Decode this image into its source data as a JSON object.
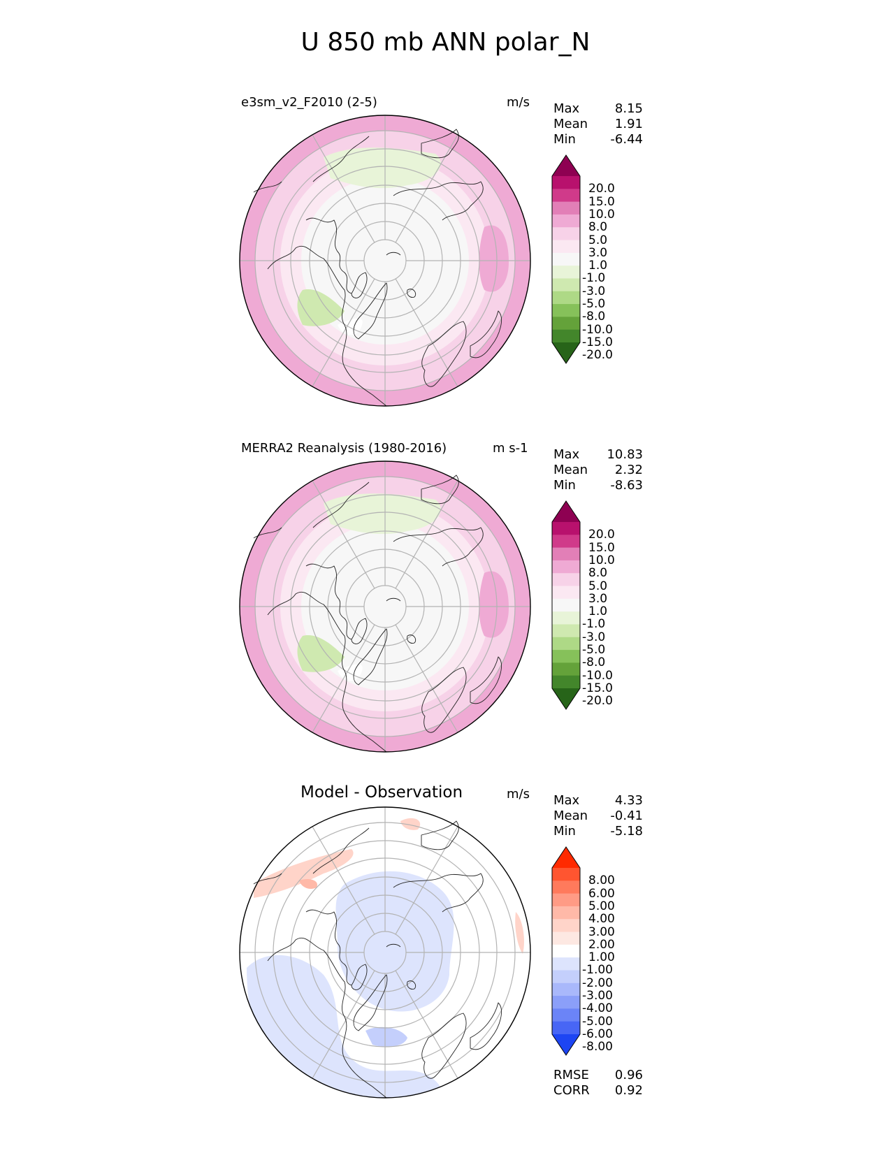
{
  "title": "U 850 mb ANN polar_N",
  "panels": [
    {
      "id": "test",
      "title": "e3sm_v2_F2010 (2-5)",
      "units": "m/s",
      "stats": [
        {
          "label": "Max",
          "value": "8.15"
        },
        {
          "label": "Mean",
          "value": "1.91"
        },
        {
          "label": "Min",
          "value": "-6.44"
        }
      ],
      "colorbar": {
        "labels": [
          "20.0",
          "15.0",
          "10.0",
          "8.0",
          "5.0",
          "3.0",
          "1.0",
          "-1.0",
          "-3.0",
          "-5.0",
          "-8.0",
          "-10.0",
          "-15.0",
          "-20.0"
        ],
        "colors": [
          "#8e0152",
          "#b8116d",
          "#d03a8a",
          "#e27fb7",
          "#efaad4",
          "#f7d2e8",
          "#fbe8f2",
          "#f7f7f7",
          "#e8f4d8",
          "#cfe9b0",
          "#aed986",
          "#86c15a",
          "#64a23a",
          "#43862b",
          "#276419"
        ]
      }
    },
    {
      "id": "reference",
      "title": "MERRA2 Reanalysis (1980-2016)",
      "units": "m s-1",
      "stats": [
        {
          "label": "Max",
          "value": "10.83"
        },
        {
          "label": "Mean",
          "value": "2.32"
        },
        {
          "label": "Min",
          "value": "-8.63"
        }
      ],
      "colorbar": {
        "labels": [
          "20.0",
          "15.0",
          "10.0",
          "8.0",
          "5.0",
          "3.0",
          "1.0",
          "-1.0",
          "-3.0",
          "-5.0",
          "-8.0",
          "-10.0",
          "-15.0",
          "-20.0"
        ],
        "colors": [
          "#8e0152",
          "#b8116d",
          "#d03a8a",
          "#e27fb7",
          "#efaad4",
          "#f7d2e8",
          "#fbe8f2",
          "#f7f7f7",
          "#e8f4d8",
          "#cfe9b0",
          "#aed986",
          "#86c15a",
          "#64a23a",
          "#43862b",
          "#276419"
        ]
      }
    },
    {
      "id": "diff",
      "title": "Model - Observation",
      "units": "m/s",
      "stats": [
        {
          "label": "Max",
          "value": "4.33"
        },
        {
          "label": "Mean",
          "value": "-0.41"
        },
        {
          "label": "Min",
          "value": "-5.18"
        }
      ],
      "extra_stats": [
        {
          "label": "RMSE",
          "value": "0.96"
        },
        {
          "label": "CORR",
          "value": "0.92"
        }
      ],
      "colorbar": {
        "labels": [
          "8.00",
          "6.00",
          "5.00",
          "4.00",
          "3.00",
          "2.00",
          "1.00",
          "-1.00",
          "-2.00",
          "-3.00",
          "-4.00",
          "-5.00",
          "-6.00",
          "-8.00"
        ],
        "colors": [
          "#ff2a00",
          "#ff5530",
          "#ff7a5c",
          "#ff9b85",
          "#ffb9a8",
          "#ffd4c9",
          "#fde8e2",
          "#ffffff",
          "#dde4fd",
          "#c4cffc",
          "#a9b8fb",
          "#8b9ff9",
          "#6b84f7",
          "#4866f5",
          "#1d45f3"
        ]
      }
    }
  ]
}
